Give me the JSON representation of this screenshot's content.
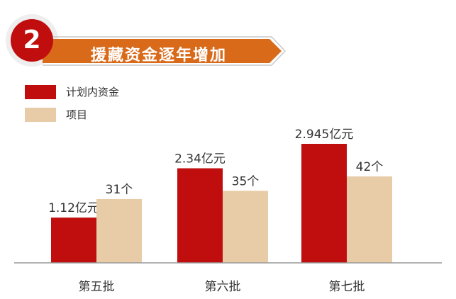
{
  "header": {
    "number": "2",
    "title": "援藏资金逐年增加"
  },
  "colors": {
    "brand_red": "#c00d0d",
    "banner_orange": "#d96a1a",
    "series_funds": "#c00d0d",
    "series_projects": "#e8cba7",
    "axis": "#999999"
  },
  "chart_data": {
    "type": "bar",
    "categories": [
      "第五批",
      "第六批",
      "第七批"
    ],
    "series": [
      {
        "name": "计划内资金",
        "values": [
          1.12,
          2.34,
          2.945
        ],
        "labels": [
          "1.12亿元",
          "2.34亿元",
          "2.945亿元"
        ],
        "color": "#c00d0d"
      },
      {
        "name": "项目",
        "values": [
          31,
          35,
          42
        ],
        "labels": [
          "31个",
          "35个",
          "42个"
        ],
        "color": "#e8cba7"
      }
    ],
    "legend": "top-left",
    "grid": false
  }
}
